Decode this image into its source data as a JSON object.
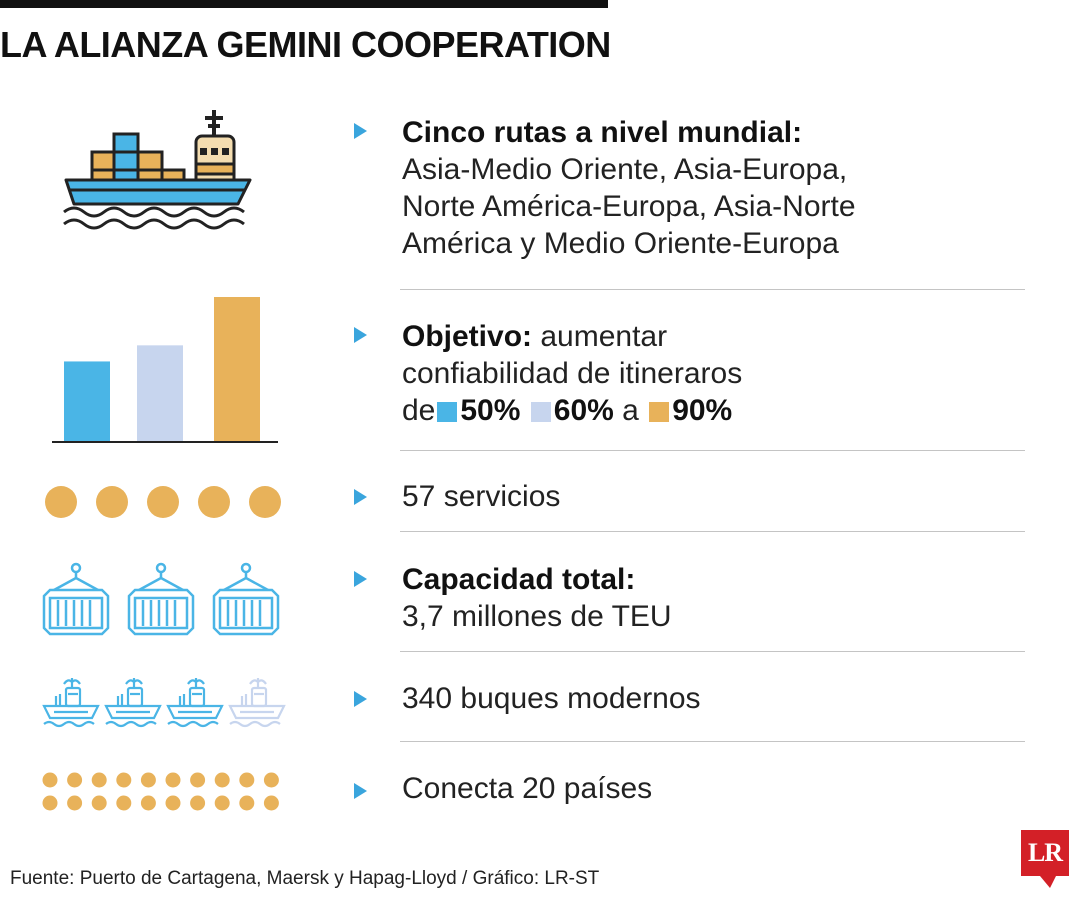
{
  "title": "LA ALIANZA GEMINI COOPERATION",
  "colors": {
    "blue": "#4ab5e6",
    "light_blue": "#c7d5ee",
    "gold": "#e8b25a",
    "arrow": "#3aa5dd",
    "logo_red": "#d32027"
  },
  "rows": {
    "routes": {
      "heading": "Cinco rutas a nivel mundial:",
      "line1": "Asia-Medio Oriente, Asia-Europa,",
      "line2": "Norte América-Europa, Asia-Norte",
      "line3": "América y Medio Oriente-Europa",
      "icon": "container-ship-icon"
    },
    "objective": {
      "heading": "Objetivo:",
      "text1": " aumentar",
      "line2": "confiabilidad de itineraros",
      "prefix": "de",
      "v1": "50%",
      "v2": "60%",
      "mid": "a",
      "v3": "90%",
      "icon": "bar-chart-icon",
      "bars": [
        {
          "value": 50,
          "color": "#4ab5e6"
        },
        {
          "value": 60,
          "color": "#c7d5ee"
        },
        {
          "value": 90,
          "color": "#e8b25a"
        }
      ]
    },
    "services": {
      "text": "57 servicios",
      "icon": "dots-icon"
    },
    "capacity": {
      "heading": "Capacidad total:",
      "line2": "3,7 millones de TEU",
      "icon": "container-icon"
    },
    "ships": {
      "text": "340 buques modernos",
      "icon": "ship-icon"
    },
    "countries": {
      "text": "Conecta 20 países",
      "icon": "dots-icon"
    }
  },
  "footer": {
    "source": "Fuente: Puerto de Cartagena, Maersk y Hapag-Lloyd / Gráfico: LR-ST",
    "logo": "LR"
  }
}
